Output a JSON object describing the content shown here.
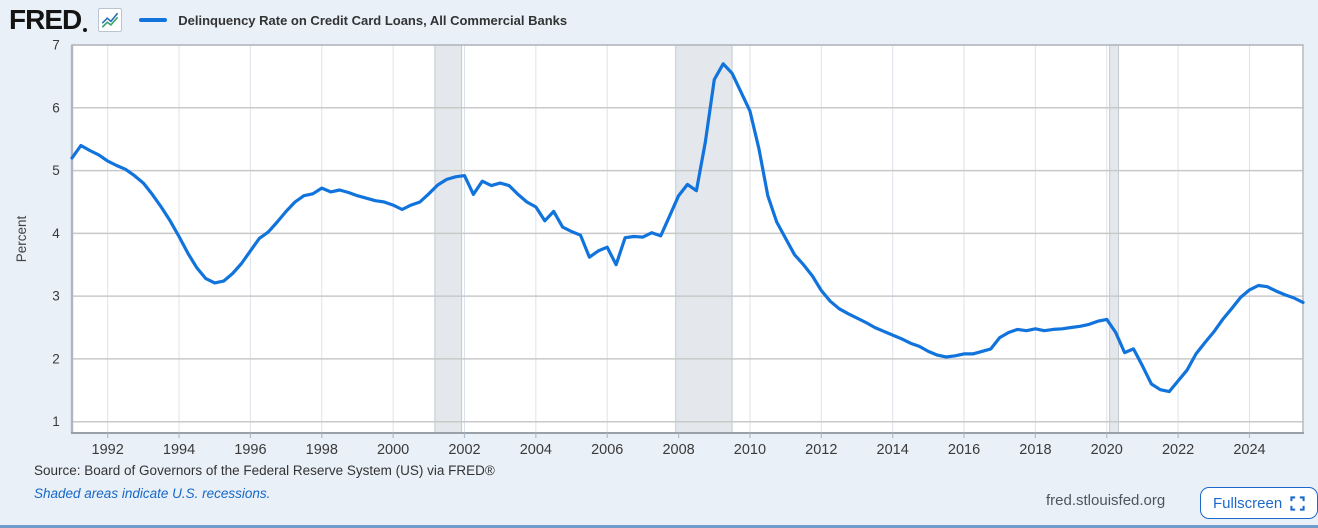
{
  "header": {
    "logo": "FRED",
    "series_label": "Delinquency Rate on Credit Card Loans, All Commercial Banks"
  },
  "footer": {
    "source": "Source: Board of Governors of the Federal Reserve System (US) via FRED®",
    "recession_note": "Shaded areas indicate U.S. recessions.",
    "site": "fred.stlouisfed.org",
    "fullscreen_label": "Fullscreen"
  },
  "chart_data": {
    "type": "line",
    "title": "Delinquency Rate on Credit Card Loans, All Commercial Banks",
    "xlabel": "",
    "ylabel": "Percent",
    "xlim": [
      1991.0,
      2025.5
    ],
    "ylim": [
      0.82,
      7
    ],
    "xticks": [
      1992,
      1994,
      1996,
      1998,
      2000,
      2002,
      2004,
      2006,
      2008,
      2010,
      2012,
      2014,
      2016,
      2018,
      2020,
      2022,
      2024
    ],
    "yticks": [
      1,
      2,
      3,
      4,
      5,
      6,
      7
    ],
    "grid": true,
    "legend_position": "top",
    "frequency": "quarterly",
    "recessions": [
      [
        2001.17,
        2001.92
      ],
      [
        2007.92,
        2009.5
      ],
      [
        2020.08,
        2020.33
      ]
    ],
    "colors": {
      "line": "#1173dc",
      "recession_fill": "#e4e8ec",
      "recession_edge": "#c3c9d0",
      "background": "#e9f0f8",
      "plot_background": "#ffffff",
      "grid": "#c9c9c9",
      "grid_vertical": "#dde3ea",
      "border": "#b0b6bd",
      "axis": "#9aa1a8",
      "tick_text": "#3a3a3a",
      "accent_blue": "#1b6ac9"
    },
    "points": [
      [
        1991.0,
        5.2
      ],
      [
        1991.25,
        5.4
      ],
      [
        1991.5,
        5.32
      ],
      [
        1991.75,
        5.25
      ],
      [
        1992.0,
        5.15
      ],
      [
        1992.25,
        5.08
      ],
      [
        1992.5,
        5.02
      ],
      [
        1992.75,
        4.92
      ],
      [
        1993.0,
        4.8
      ],
      [
        1993.25,
        4.62
      ],
      [
        1993.5,
        4.42
      ],
      [
        1993.75,
        4.2
      ],
      [
        1994.0,
        3.95
      ],
      [
        1994.25,
        3.68
      ],
      [
        1994.5,
        3.45
      ],
      [
        1994.75,
        3.28
      ],
      [
        1995.0,
        3.21
      ],
      [
        1995.25,
        3.24
      ],
      [
        1995.5,
        3.36
      ],
      [
        1995.75,
        3.52
      ],
      [
        1996.0,
        3.72
      ],
      [
        1996.25,
        3.92
      ],
      [
        1996.5,
        4.02
      ],
      [
        1996.75,
        4.18
      ],
      [
        1997.0,
        4.35
      ],
      [
        1997.25,
        4.5
      ],
      [
        1997.5,
        4.6
      ],
      [
        1997.75,
        4.63
      ],
      [
        1998.0,
        4.72
      ],
      [
        1998.25,
        4.66
      ],
      [
        1998.5,
        4.69
      ],
      [
        1998.75,
        4.65
      ],
      [
        1999.0,
        4.6
      ],
      [
        1999.25,
        4.56
      ],
      [
        1999.5,
        4.52
      ],
      [
        1999.75,
        4.5
      ],
      [
        2000.0,
        4.45
      ],
      [
        2000.25,
        4.38
      ],
      [
        2000.5,
        4.45
      ],
      [
        2000.75,
        4.5
      ],
      [
        2001.0,
        4.63
      ],
      [
        2001.25,
        4.77
      ],
      [
        2001.5,
        4.86
      ],
      [
        2001.75,
        4.9
      ],
      [
        2002.0,
        4.92
      ],
      [
        2002.25,
        4.62
      ],
      [
        2002.5,
        4.83
      ],
      [
        2002.75,
        4.76
      ],
      [
        2003.0,
        4.8
      ],
      [
        2003.25,
        4.76
      ],
      [
        2003.5,
        4.62
      ],
      [
        2003.75,
        4.5
      ],
      [
        2004.0,
        4.42
      ],
      [
        2004.25,
        4.2
      ],
      [
        2004.5,
        4.35
      ],
      [
        2004.75,
        4.1
      ],
      [
        2005.0,
        4.03
      ],
      [
        2005.25,
        3.97
      ],
      [
        2005.5,
        3.62
      ],
      [
        2005.75,
        3.72
      ],
      [
        2006.0,
        3.78
      ],
      [
        2006.25,
        3.5
      ],
      [
        2006.5,
        3.93
      ],
      [
        2006.75,
        3.95
      ],
      [
        2007.0,
        3.94
      ],
      [
        2007.25,
        4.01
      ],
      [
        2007.5,
        3.96
      ],
      [
        2007.75,
        4.28
      ],
      [
        2008.0,
        4.6
      ],
      [
        2008.25,
        4.78
      ],
      [
        2008.5,
        4.68
      ],
      [
        2008.75,
        5.45
      ],
      [
        2009.0,
        6.45
      ],
      [
        2009.25,
        6.7
      ],
      [
        2009.5,
        6.55
      ],
      [
        2009.75,
        6.25
      ],
      [
        2010.0,
        5.95
      ],
      [
        2010.25,
        5.35
      ],
      [
        2010.5,
        4.6
      ],
      [
        2010.75,
        4.18
      ],
      [
        2011.0,
        3.92
      ],
      [
        2011.25,
        3.66
      ],
      [
        2011.5,
        3.5
      ],
      [
        2011.75,
        3.32
      ],
      [
        2012.0,
        3.09
      ],
      [
        2012.25,
        2.92
      ],
      [
        2012.5,
        2.8
      ],
      [
        2012.75,
        2.72
      ],
      [
        2013.0,
        2.65
      ],
      [
        2013.25,
        2.58
      ],
      [
        2013.5,
        2.5
      ],
      [
        2013.75,
        2.44
      ],
      [
        2014.0,
        2.38
      ],
      [
        2014.25,
        2.32
      ],
      [
        2014.5,
        2.25
      ],
      [
        2014.75,
        2.2
      ],
      [
        2015.0,
        2.12
      ],
      [
        2015.25,
        2.06
      ],
      [
        2015.5,
        2.03
      ],
      [
        2015.75,
        2.05
      ],
      [
        2016.0,
        2.08
      ],
      [
        2016.25,
        2.08
      ],
      [
        2016.5,
        2.12
      ],
      [
        2016.75,
        2.16
      ],
      [
        2017.0,
        2.34
      ],
      [
        2017.25,
        2.42
      ],
      [
        2017.5,
        2.47
      ],
      [
        2017.75,
        2.45
      ],
      [
        2018.0,
        2.48
      ],
      [
        2018.25,
        2.45
      ],
      [
        2018.5,
        2.47
      ],
      [
        2018.75,
        2.48
      ],
      [
        2019.0,
        2.5
      ],
      [
        2019.25,
        2.52
      ],
      [
        2019.5,
        2.55
      ],
      [
        2019.75,
        2.6
      ],
      [
        2020.0,
        2.63
      ],
      [
        2020.25,
        2.42
      ],
      [
        2020.5,
        2.1
      ],
      [
        2020.75,
        2.16
      ],
      [
        2021.0,
        1.89
      ],
      [
        2021.25,
        1.6
      ],
      [
        2021.5,
        1.51
      ],
      [
        2021.75,
        1.48
      ],
      [
        2022.0,
        1.65
      ],
      [
        2022.25,
        1.82
      ],
      [
        2022.5,
        2.08
      ],
      [
        2022.75,
        2.26
      ],
      [
        2023.0,
        2.43
      ],
      [
        2023.25,
        2.63
      ],
      [
        2023.5,
        2.8
      ],
      [
        2023.75,
        2.98
      ],
      [
        2024.0,
        3.1
      ],
      [
        2024.25,
        3.17
      ],
      [
        2024.5,
        3.15
      ],
      [
        2024.75,
        3.08
      ],
      [
        2025.0,
        3.02
      ],
      [
        2025.25,
        2.97
      ],
      [
        2025.5,
        2.9
      ]
    ]
  }
}
